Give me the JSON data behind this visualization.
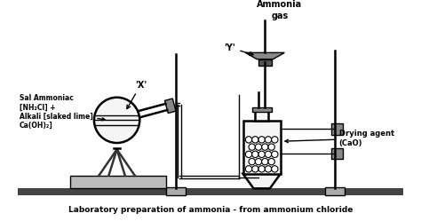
{
  "title": "Laboratory preparation of ammonia - from ammonium chloride",
  "background_color": "#ffffff",
  "line_color": "#000000",
  "label_flask": "Sal Ammoniac\n[NH₂Cl] +\nAlkali [slaked lime]\nCa(OH)₂]",
  "label_x": "'X'",
  "label_y": "'Y'",
  "label_ammonia": "Ammonia\ngas",
  "label_drying": "Drying agent\n(CaO)",
  "bench_color": "#444444",
  "block_color": "#bbbbbb",
  "clamp_color": "#888888",
  "flask_color": "#f5f5f5",
  "stand_base_color": "#aaaaaa",
  "funnel_color": "#888888",
  "stopper_color": "#888888"
}
